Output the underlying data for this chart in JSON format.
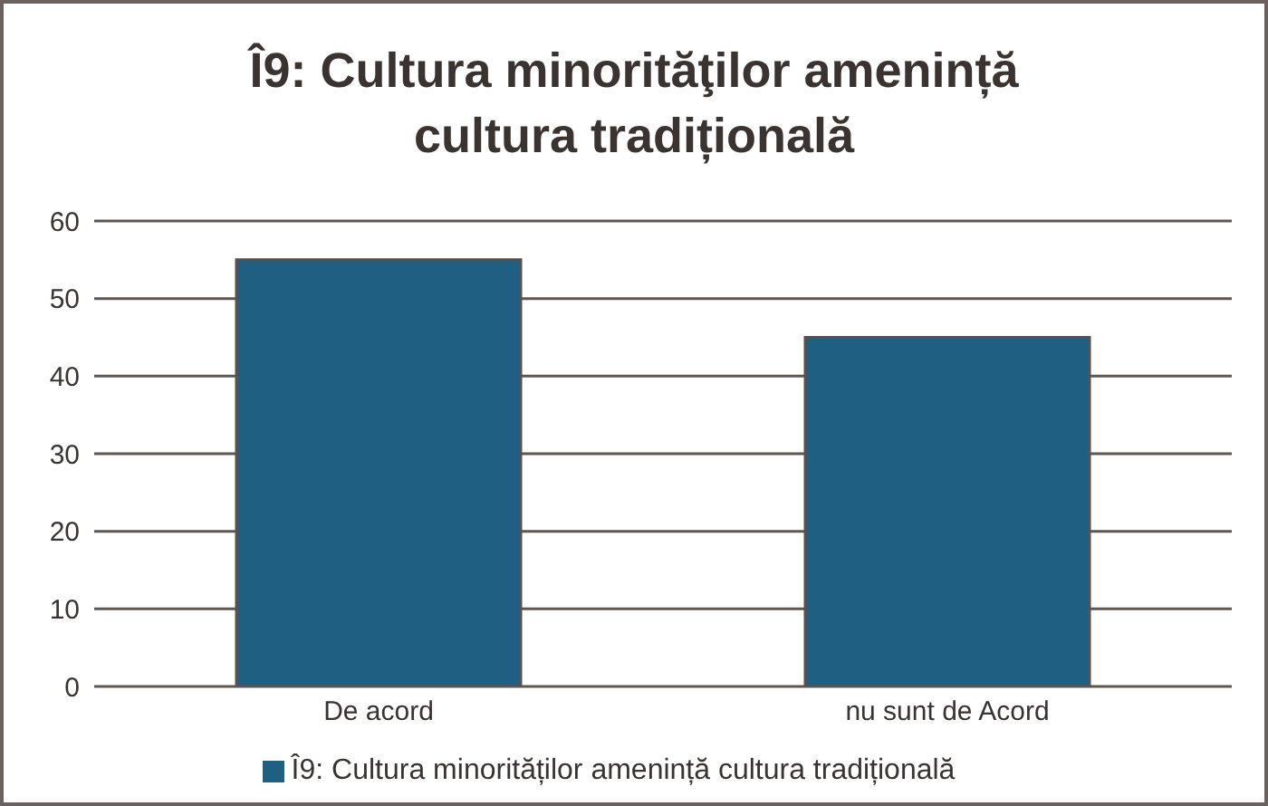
{
  "chart_data": {
    "type": "bar",
    "title": "Î9: Cultura minorităţilor amenință cultura tradițională",
    "categories": [
      "De acord",
      "nu sunt de Acord"
    ],
    "series": [
      {
        "name": "Î9: Cultura minorităților amenință cultura tradițională",
        "color": "#1f5f82",
        "values": [
          55,
          45
        ]
      }
    ],
    "ylim": [
      0,
      60
    ],
    "yticks": [
      0,
      10,
      20,
      30,
      40,
      50,
      60
    ],
    "grid": "y",
    "legend": "bottom"
  }
}
